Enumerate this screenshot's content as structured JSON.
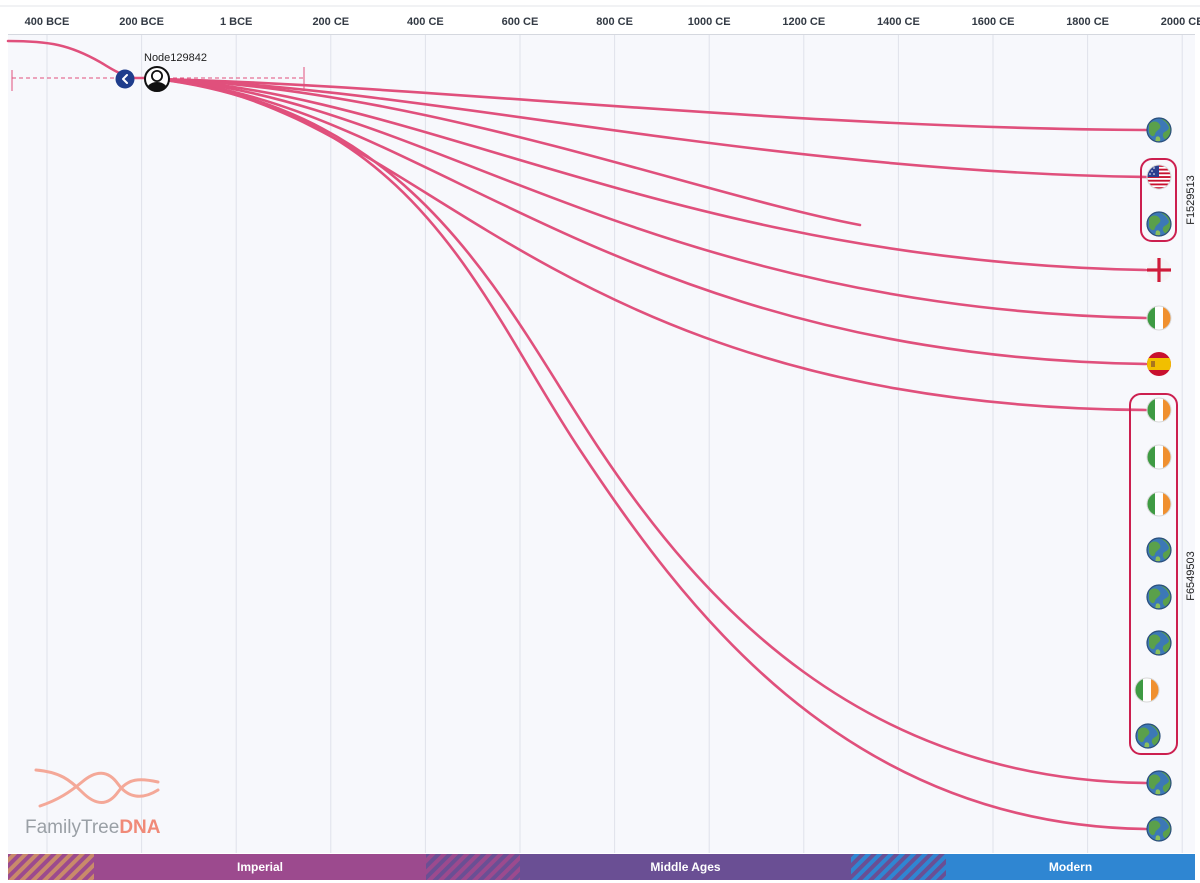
{
  "timeline": {
    "axis_ticks": [
      "400 BCE",
      "200 BCE",
      "1 BCE",
      "200 CE",
      "400 CE",
      "600 CE",
      "800 CE",
      "1000 CE",
      "1200 CE",
      "1400 CE",
      "1600 CE",
      "1800 CE",
      "2000 CE"
    ]
  },
  "root_node": {
    "label": "Node129842",
    "icon": "person-silhouette-icon",
    "collapse_icon": "chevron-left-icon"
  },
  "branches": [
    {
      "flag": "globe-icon"
    },
    {
      "flag": "flag-usa-icon"
    },
    {
      "flag": "globe-icon"
    },
    {
      "flag": "flag-england-icon"
    },
    {
      "flag": "flag-ireland-icon"
    },
    {
      "flag": "flag-spain-icon"
    },
    {
      "flag": "flag-ireland-icon"
    },
    {
      "flag": "flag-ireland-icon"
    },
    {
      "flag": "flag-ireland-icon"
    },
    {
      "flag": "globe-icon"
    },
    {
      "flag": "globe-icon"
    },
    {
      "flag": "globe-icon"
    },
    {
      "flag": "flag-ireland-icon"
    },
    {
      "flag": "globe-icon"
    },
    {
      "flag": "globe-icon"
    },
    {
      "flag": "globe-icon"
    }
  ],
  "groups": [
    {
      "label": "F1529513"
    },
    {
      "label": "F6549503"
    }
  ],
  "eras": [
    {
      "label": ""
    },
    {
      "label": "Imperial"
    },
    {
      "label": ""
    },
    {
      "label": "Middle Ages"
    },
    {
      "label": ""
    },
    {
      "label": "Modern"
    }
  ],
  "logo": {
    "word_light": "FamilyTree",
    "word_bold": "DNA"
  },
  "colors": {
    "line": "#e0507c",
    "group_border": "#cc1f4f",
    "era_imperial": "#9c4a8e",
    "era_middle": "#6a4f94",
    "era_modern": "#2f86d2",
    "background": "#f7f8fc",
    "grid": "#dfe2ea"
  }
}
